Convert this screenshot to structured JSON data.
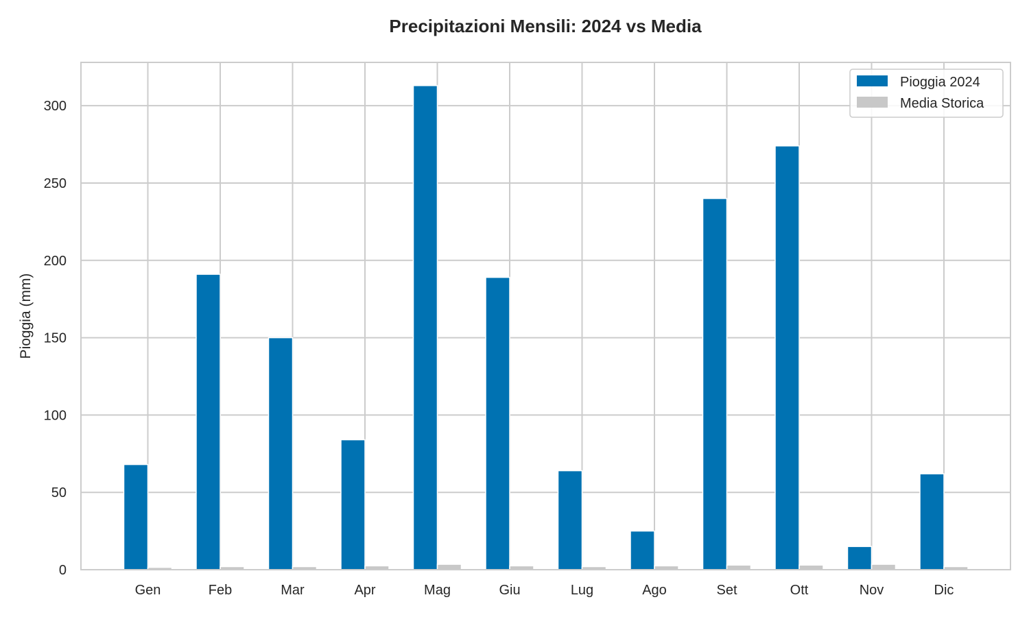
{
  "chart_data": {
    "type": "bar",
    "title": "Precipitazioni Mensili: 2024 vs Media",
    "xlabel": "",
    "ylabel": "Pioggia (mm)",
    "ylim": [
      0,
      328
    ],
    "yticks": [
      0,
      50,
      100,
      150,
      200,
      250,
      300
    ],
    "categories": [
      "Gen",
      "Feb",
      "Mar",
      "Apr",
      "Mag",
      "Giu",
      "Lug",
      "Ago",
      "Set",
      "Ott",
      "Nov",
      "Dic"
    ],
    "series": [
      {
        "name": "Pioggia 2024",
        "color": "#0072B2",
        "values": [
          68,
          191,
          150,
          84,
          313,
          189,
          64,
          25,
          240,
          274,
          15,
          62
        ]
      },
      {
        "name": "Media Storica",
        "color": "#C8C8C8",
        "values": [
          1.5,
          2,
          2,
          2.5,
          3.5,
          2.5,
          2,
          2.5,
          3,
          3,
          3.5,
          2
        ]
      }
    ],
    "grid": true,
    "legend_position": "top-right"
  }
}
